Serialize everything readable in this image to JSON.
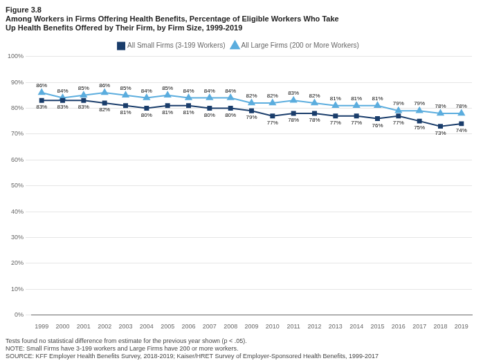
{
  "chart_data": {
    "type": "line",
    "title": [
      "Figure 3.8",
      "Among Workers in Firms Offering Health Benefits, Percentage of Eligible Workers Who Take",
      "Up Health Benefits Offered by Their Firm, by Firm Size, 1999-2019"
    ],
    "annotations": [
      "Tests found no statistical difference from estimate for the previous year shown (p < .05).",
      "NOTE: Small Firms have 3-199 workers and Large Firms have 200 or more workers.",
      "SOURCE: KFF Employer Health Benefits Survey, 2018-2019; Kaiser/HRET Survey of Employer-Sponsored Health Benefits, 1999-2017"
    ],
    "x": [
      1999,
      2000,
      2001,
      2002,
      2003,
      2004,
      2005,
      2006,
      2007,
      2008,
      2009,
      2010,
      2011,
      2012,
      2013,
      2014,
      2015,
      2016,
      2017,
      2018,
      2019
    ],
    "series": [
      {
        "name": "All Small Firms (3-199 Workers)",
        "color": "#1a3d6b",
        "marker": "square",
        "values": [
          83,
          83,
          83,
          82,
          81,
          80,
          81,
          81,
          80,
          80,
          79,
          77,
          78,
          78,
          77,
          77,
          76,
          77,
          75,
          73,
          74
        ],
        "value_labels": [
          "83%",
          "83%",
          "83%",
          "82%",
          "81%",
          "80%",
          "81%",
          "81%",
          "80%",
          "80%",
          "79%",
          "77%",
          "78%",
          "78%",
          "77%",
          "77%",
          "76%",
          "77%",
          "75%",
          "73%",
          "74%"
        ]
      },
      {
        "name": "All Large Firms (200 or More Workers)",
        "color": "#5badde",
        "marker": "triangle",
        "values": [
          86,
          84,
          85,
          86,
          85,
          84,
          85,
          84,
          84,
          84,
          82,
          82,
          83,
          82,
          81,
          81,
          81,
          79,
          79,
          78,
          78
        ],
        "value_labels": [
          "86%",
          "84%",
          "85%",
          "86%",
          "85%",
          "84%",
          "85%",
          "84%",
          "84%",
          "84%",
          "82%",
          "82%",
          "83%",
          "82%",
          "81%",
          "81%",
          "81%",
          "79%",
          "79%",
          "78%",
          "78%"
        ]
      }
    ],
    "xlim": [
      1998.5,
      2019.5
    ],
    "xticks": [
      1999,
      2000,
      2001,
      2002,
      2003,
      2004,
      2005,
      2006,
      2007,
      2008,
      2009,
      2010,
      2011,
      2012,
      2013,
      2014,
      2015,
      2016,
      2017,
      2018,
      2019
    ],
    "ylim": [
      0,
      100
    ],
    "yticks": [
      {
        "value": 0,
        "label": "0%"
      },
      {
        "value": 10,
        "label": "10%"
      },
      {
        "value": 20,
        "label": "20%"
      },
      {
        "value": 30,
        "label": "30%"
      },
      {
        "value": 40,
        "label": "40%"
      },
      {
        "value": 50,
        "label": "50%"
      },
      {
        "value": 60,
        "label": "60%"
      },
      {
        "value": 70,
        "label": "70%"
      },
      {
        "value": 80,
        "label": "80%"
      },
      {
        "value": 90,
        "label": "90%"
      },
      {
        "value": 100,
        "label": "100%"
      }
    ],
    "grid": "y",
    "legend": "top",
    "data_labels": true
  }
}
